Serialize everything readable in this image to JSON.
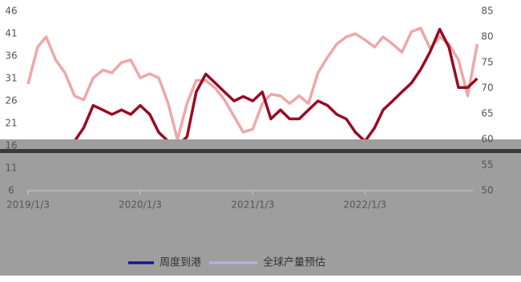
{
  "chart_data": {
    "type": "line",
    "x": [
      "2019/1/3",
      "2019/2/3",
      "2019/3/3",
      "2019/4/3",
      "2019/5/3",
      "2019/6/3",
      "2019/7/3",
      "2019/8/3",
      "2019/9/3",
      "2019/10/3",
      "2019/11/3",
      "2019/12/3",
      "2020/1/3",
      "2020/2/3",
      "2020/3/3",
      "2020/4/3",
      "2020/5/3",
      "2020/6/3",
      "2020/7/3",
      "2020/8/3",
      "2020/9/3",
      "2020/10/3",
      "2020/11/3",
      "2020/12/3",
      "2021/1/3",
      "2021/2/3",
      "2021/3/3",
      "2021/4/3",
      "2021/5/3",
      "2021/6/3",
      "2021/7/3",
      "2021/8/3",
      "2021/9/3",
      "2021/10/3",
      "2021/11/3",
      "2021/12/3",
      "2022/1/3",
      "2022/2/3",
      "2022/3/3",
      "2022/4/3",
      "2022/5/3",
      "2022/6/3",
      "2022/7/3",
      "2022/8/3",
      "2022/9/3",
      "2022/10/3",
      "2022/11/3",
      "2022/12/3",
      "2023/1/3"
    ],
    "series": [
      {
        "name": "周度到港",
        "color": "#9b0a22",
        "legend_color": "#0a1f8f",
        "axis": "y",
        "values": [
          14,
          13,
          13,
          14,
          15,
          17,
          20,
          25,
          24,
          23,
          24,
          23,
          25,
          23,
          19,
          17,
          16,
          18,
          28,
          32,
          30,
          28,
          26,
          27,
          26,
          28,
          22,
          24,
          22,
          22,
          24,
          26,
          25,
          23,
          22,
          19,
          17,
          20,
          24,
          26,
          28,
          30,
          33,
          37,
          42,
          38,
          29,
          29,
          31
        ]
      },
      {
        "name": "全球产量预估",
        "color": "#eea7a7",
        "legend_color": "#b4aee8",
        "axis": "y2",
        "values": [
          70.8,
          78,
          80,
          75.5,
          73,
          68.5,
          67.7,
          72,
          73.5,
          73,
          75,
          75.5,
          72,
          72.8,
          72,
          67,
          60,
          67,
          71.5,
          71.5,
          70,
          67.7,
          64.5,
          61.4,
          62,
          67,
          68.8,
          68.5,
          67,
          68.5,
          67,
          73,
          76,
          78.6,
          80,
          80.6,
          79.4,
          78,
          80,
          78.6,
          77,
          81,
          81.7,
          77.7,
          80,
          78.6,
          75.5,
          68.5,
          78.6
        ]
      }
    ],
    "xticks": [
      "2019/1/3",
      "2020/1/3",
      "2021/1/3",
      "2022/1/3"
    ],
    "ylim": [
      6,
      46
    ],
    "yticks": [
      6,
      11,
      16,
      21,
      26,
      31,
      36,
      41,
      46
    ],
    "y2lim": [
      50,
      85
    ],
    "y2ticks": [
      50,
      55,
      60,
      65,
      70,
      75,
      80,
      85
    ]
  }
}
